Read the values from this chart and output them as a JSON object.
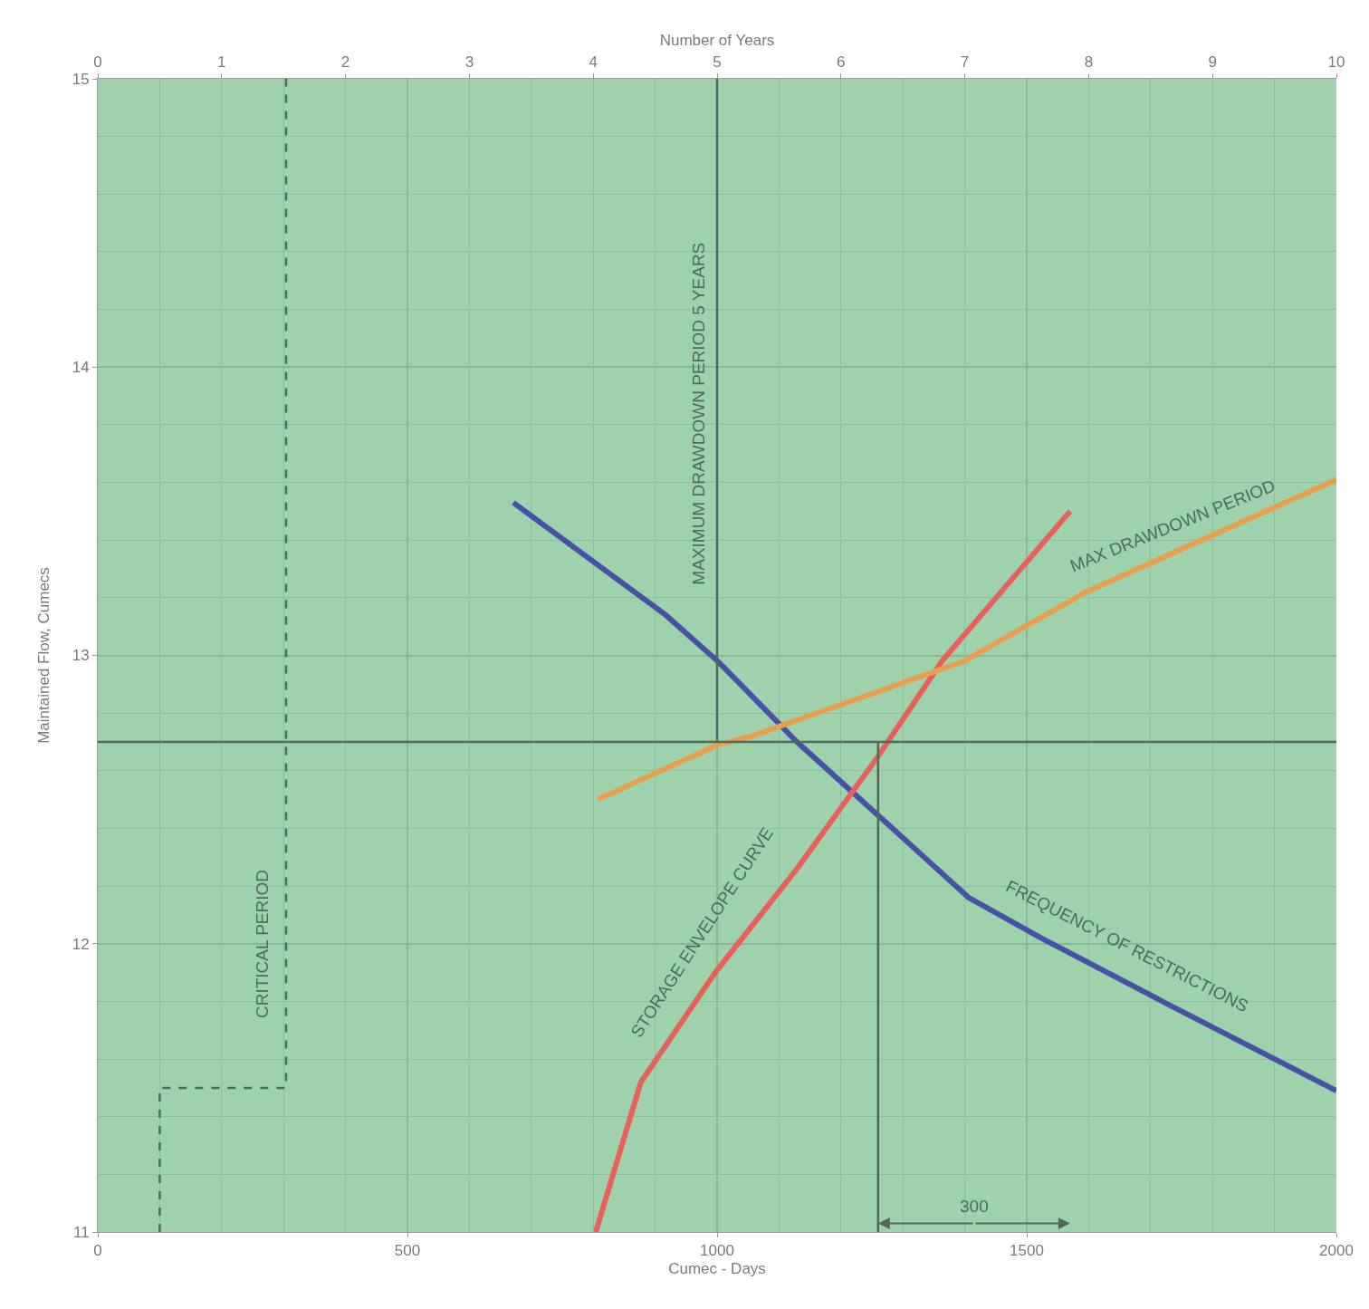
{
  "chart_data": {
    "type": "line",
    "xlabel": "Cumec - Days",
    "ylabel": "Maintained Flow, Cumecs",
    "x2label": "Number of Years",
    "xlim": [
      0,
      2000
    ],
    "xticks": [
      0,
      500,
      1000,
      1500,
      2000
    ],
    "ylim": [
      11,
      15
    ],
    "yticks": [
      11,
      12,
      13,
      14,
      15
    ],
    "x2lim": [
      0,
      10
    ],
    "x2ticks": [
      0,
      1,
      2,
      3,
      4,
      5,
      6,
      7,
      8,
      9,
      10
    ],
    "grid": true,
    "marker": "none",
    "series": [
      {
        "color": "#4a4fa8",
        "x": [
          671,
          917,
          1001,
          1129,
          1268,
          1406,
          1523,
          1728,
          2000
        ],
        "values": [
          13.53,
          13.14,
          12.98,
          12.7,
          12.43,
          12.16,
          12.02,
          11.79,
          11.49
        ]
      },
      {
        "color": "#e8605a",
        "x": [
          804,
          877,
          997,
          1129,
          1260,
          1363,
          1570
        ],
        "values": [
          11.0,
          11.52,
          11.9,
          12.26,
          12.65,
          12.98,
          13.5
        ]
      },
      {
        "color": "#e8a050",
        "x": [
          807,
          1001,
          1056,
          1399,
          1596,
          2000
        ],
        "values": [
          12.5,
          12.69,
          12.72,
          12.98,
          13.22,
          13.61
        ]
      },
      {
        "color": "#4f6a58",
        "x": [
          0,
          2000
        ],
        "values": [
          12.7,
          12.7
        ]
      },
      {
        "color": "#4f6a58",
        "x": [
          1000,
          1000
        ],
        "values": [
          12.7,
          15
        ]
      },
      {
        "color": "#4f6a58",
        "x": [
          1260,
          1260
        ],
        "values": [
          12.7,
          11
        ]
      },
      {
        "color": "#4f6a58",
        "line_style": "dashed",
        "x": [
          100,
          100,
          304,
          304
        ],
        "values": [
          11,
          11.5,
          11.5,
          15
        ]
      }
    ],
    "annotations": [
      "MAXIMUM DRAWDOWN PERIOD 5 YEARS",
      "CRITICAL PERIOD",
      "STORAGE ENVELOPE CURVE",
      "FREQUENCY OF RESTRICTIONS",
      "MAX DRAWDOWN PERIOD",
      {
        "text": "300",
        "x": 1260,
        "y": 11.03
      }
    ]
  }
}
